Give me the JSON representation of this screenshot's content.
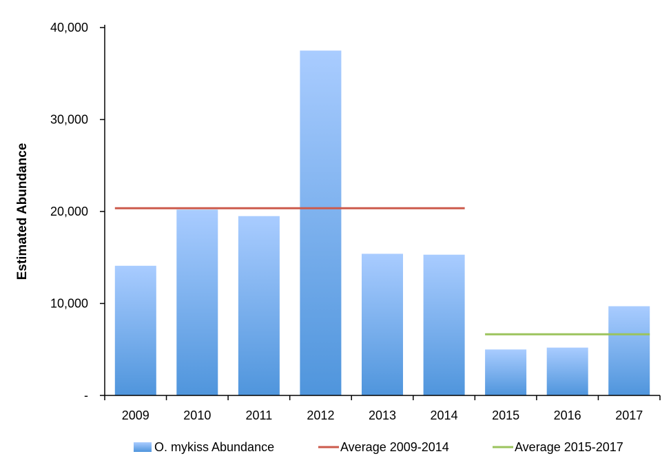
{
  "chart_data": {
    "type": "bar",
    "title": "",
    "xlabel": "",
    "ylabel": "Estimated Abundance",
    "categories": [
      "2009",
      "2010",
      "2011",
      "2012",
      "2013",
      "2014",
      "2015",
      "2016",
      "2017"
    ],
    "series": [
      {
        "name": "O. mykiss Abundance",
        "type": "bar",
        "values": [
          14100,
          20200,
          19500,
          37500,
          15400,
          15300,
          5000,
          5200,
          9700
        ],
        "color_top": "#a9ccff",
        "color_bottom": "#4f95dc"
      }
    ],
    "reference_lines": [
      {
        "name": "Average 2009-2014",
        "value": 20350,
        "from_category": "2009",
        "to_category": "2014",
        "color": "#cc5a4b"
      },
      {
        "name": "Average 2015-2017",
        "value": 6650,
        "from_category": "2015",
        "to_category": "2017",
        "color": "#9bc35c"
      }
    ],
    "ylim": [
      0,
      40000
    ],
    "yticks": [
      {
        "value": 0,
        "label": "-"
      },
      {
        "value": 10000,
        "label": "10,000"
      },
      {
        "value": 20000,
        "label": "20,000"
      },
      {
        "value": 30000,
        "label": "30,000"
      },
      {
        "value": 40000,
        "label": "40,000"
      }
    ],
    "grid": false,
    "legend_position": "bottom"
  }
}
